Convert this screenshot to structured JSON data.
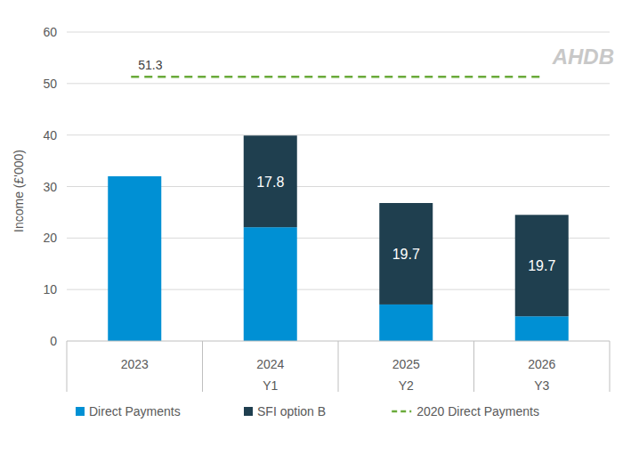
{
  "chart_data": {
    "type": "bar",
    "stacked": true,
    "y_label": "Income (£'000)",
    "categories": [
      "2023",
      "2024",
      "2025",
      "2026"
    ],
    "sublabels": [
      null,
      "Y1",
      "Y2",
      "Y3"
    ],
    "series": [
      {
        "name": "Direct Payments",
        "color": "#0090d4",
        "data_labels": false,
        "values": [
          32.0,
          22.1,
          7.1,
          4.8
        ]
      },
      {
        "name": "SFI option B",
        "color": "#1f3f4f",
        "data_labels": true,
        "values": [
          null,
          17.8,
          19.7,
          19.7
        ]
      }
    ],
    "reference_lines": [
      {
        "name": "2020 Direct Payments",
        "value": 51.3,
        "color": "#6aaa3a",
        "line_style": "dashed"
      }
    ],
    "ylim": [
      0,
      60
    ],
    "yticks": [
      0,
      10,
      20,
      30,
      40,
      50,
      60
    ],
    "grid": true,
    "legend": "bottom",
    "watermark": "AHDB"
  }
}
